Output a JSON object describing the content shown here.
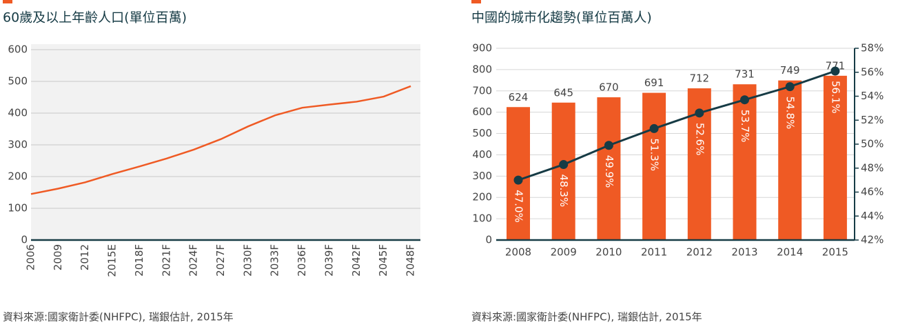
{
  "chart_data": [
    {
      "type": "line",
      "title": "60歲及以上年齡人口(單位百萬)",
      "categories": [
        "2006",
        "2009",
        "2012",
        "2015E",
        "2018F",
        "2021F",
        "2024F",
        "2027F",
        "2030F",
        "2033F",
        "2036F",
        "2039F",
        "2042F",
        "2045F",
        "2048F"
      ],
      "values": [
        145,
        162,
        182,
        208,
        232,
        257,
        285,
        318,
        358,
        393,
        417,
        427,
        436,
        452,
        485
      ],
      "color": "#ef5a24",
      "ylim": [
        0,
        600
      ],
      "yticks": [
        0,
        100,
        200,
        300,
        400,
        500,
        600
      ],
      "grid": true,
      "source": "資料來源:國家衛計委(NHFPC), 瑞銀估計, 2015年"
    },
    {
      "type": "combo",
      "title": "中國的城市化趨勢(單位百萬人)",
      "categories": [
        "2008",
        "2009",
        "2010",
        "2011",
        "2012",
        "2013",
        "2014",
        "2015"
      ],
      "series": [
        {
          "type": "bar",
          "color": "#ef5a24",
          "values": [
            624,
            645,
            670,
            691,
            712,
            731,
            749,
            771
          ]
        },
        {
          "type": "line",
          "axis": "y2",
          "color": "#163b45",
          "values": [
            47.0,
            48.3,
            49.9,
            51.3,
            52.6,
            53.7,
            54.8,
            56.1
          ],
          "value_labels": [
            "47.0%",
            "48.3%",
            "49.9%",
            "51.3%",
            "52.6%",
            "53.7%",
            "54.8%",
            "56.1%"
          ]
        }
      ],
      "ylim": [
        0,
        900
      ],
      "yticks": [
        0,
        100,
        200,
        300,
        400,
        500,
        600,
        700,
        800,
        900
      ],
      "y2lim": [
        42,
        58
      ],
      "y2ticks": [
        {
          "value": 42,
          "label": "42%"
        },
        {
          "value": 44,
          "label": "44%"
        },
        {
          "value": 46,
          "label": "46%"
        },
        {
          "value": 48,
          "label": "48%"
        },
        {
          "value": 50,
          "label": "50%"
        },
        {
          "value": 52,
          "label": "52%"
        },
        {
          "value": 54,
          "label": "54%"
        },
        {
          "value": 56,
          "label": "56%"
        },
        {
          "value": 58,
          "label": "58%"
        }
      ],
      "grid": true,
      "source": "資料來源:國家衛計委(NHFPC), 瑞銀估計, 2015年"
    }
  ]
}
